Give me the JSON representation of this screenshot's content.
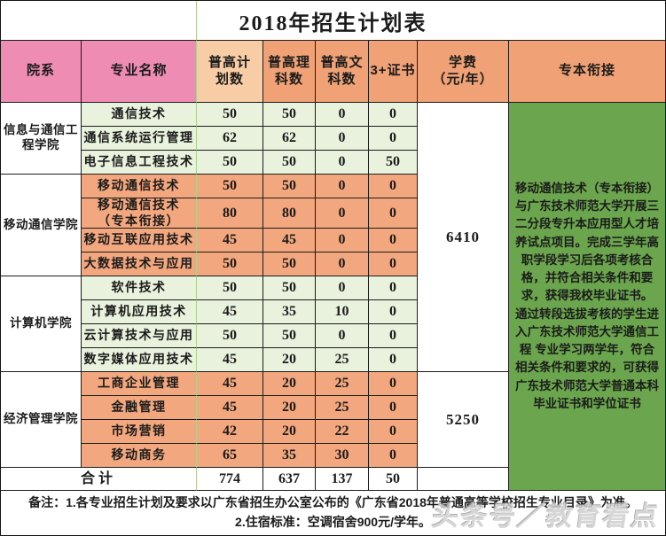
{
  "title": "2018年招生计划表",
  "header": {
    "dept": "院系",
    "major": "专业名称",
    "plan": "普高计\n划数",
    "science": "普高理\n科数",
    "arts": "普高文\n科数",
    "cert": "3+证书",
    "tuition": "学费\n（元/年）",
    "bridge": "专本衔接"
  },
  "groups": [
    {
      "dept": "信息与通信工程学院",
      "rows": [
        {
          "major": "通信技术",
          "plan": "50",
          "science": "50",
          "arts": "0",
          "cert": "0"
        },
        {
          "major": "通信系统运行管理",
          "plan": "62",
          "science": "62",
          "arts": "0",
          "cert": "0"
        },
        {
          "major": "电子信息工程技术",
          "plan": "50",
          "science": "50",
          "arts": "0",
          "cert": "50"
        }
      ]
    },
    {
      "dept": "移动通信学院",
      "rows": [
        {
          "major": "移动通信技术",
          "plan": "50",
          "science": "50",
          "arts": "0",
          "cert": "0"
        },
        {
          "major": "移动通信技术\n（专本衔接）",
          "plan": "80",
          "science": "80",
          "arts": "0",
          "cert": "0"
        },
        {
          "major": "移动互联应用技术",
          "plan": "45",
          "science": "45",
          "arts": "0",
          "cert": "0"
        },
        {
          "major": "大数据技术与应用",
          "plan": "50",
          "science": "50",
          "arts": "0",
          "cert": "0"
        }
      ]
    },
    {
      "dept": "计算机学院",
      "rows": [
        {
          "major": "软件技术",
          "plan": "50",
          "science": "50",
          "arts": "0",
          "cert": "0"
        },
        {
          "major": "计算机应用技术",
          "plan": "45",
          "science": "35",
          "arts": "10",
          "cert": "0"
        },
        {
          "major": "云计算技术与应用",
          "plan": "50",
          "science": "50",
          "arts": "0",
          "cert": "0"
        },
        {
          "major": "数字媒体应用技术",
          "plan": "45",
          "science": "20",
          "arts": "25",
          "cert": "0"
        }
      ]
    },
    {
      "dept": "经济管理学院",
      "rows": [
        {
          "major": "工商企业管理",
          "plan": "45",
          "science": "20",
          "arts": "25",
          "cert": "0"
        },
        {
          "major": "金融管理",
          "plan": "45",
          "science": "20",
          "arts": "25",
          "cert": "0"
        },
        {
          "major": "市场营销",
          "plan": "42",
          "science": "20",
          "arts": "22",
          "cert": "0"
        },
        {
          "major": "移动商务",
          "plan": "65",
          "science": "35",
          "arts": "30",
          "cert": "0"
        }
      ]
    }
  ],
  "fees": {
    "first": "6410",
    "second": "5250"
  },
  "bridge": {
    "p1": "移动通信技术（专本衔接）与广东技术师范大学开展三二分段专升本应用型人才培养试点项目。完成三学年高职学段学习后各项考核合格，并符合相关条件和要求，获得我校毕业证书。",
    "p2": "通过转段选拔考核的学生进入广东技术师范大学通信工程 专业学习两学年，符合相关条件和要求的，可获得广东技术师范大学普通本科毕业证书和学位证书"
  },
  "total": {
    "label": "合计",
    "plan": "774",
    "science": "637",
    "arts": "137",
    "cert": "50"
  },
  "notes": {
    "line1": "备注：1.各专业招生计划及要求以广东省招生办公室公布的《广东省2018年普通高等学校招生专业目录》为准。",
    "line2": "2.住宿标准：空调宿舍900元/学年。"
  },
  "watermark": "头条号／教育看点",
  "colors": {
    "header_pink": "#ef8cb4",
    "header_peach": "#f8cda6",
    "header_orange": "#f0a276",
    "row_green": "#e9f2dd",
    "row_salmon": "#f3a77e",
    "bridge_green": "#6ba54d",
    "gridline_green": "#abd18d"
  }
}
